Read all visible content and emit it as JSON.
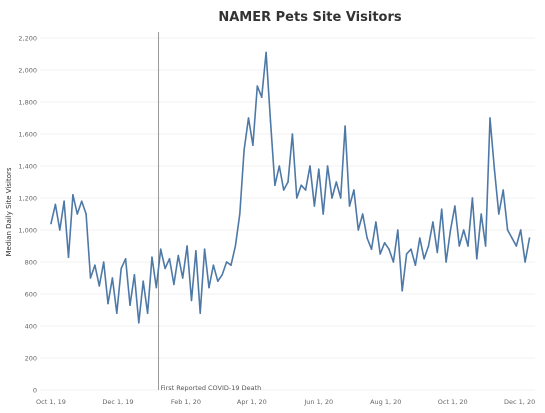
{
  "chart_data": {
    "type": "line",
    "title": "NAMER Pets Site Visitors",
    "ylabel": "Median Daily Site Visitors",
    "xlabel": "",
    "ylim": [
      0,
      2200
    ],
    "xlim": [
      "2019-09-21",
      "2020-12-15"
    ],
    "grid": true,
    "x_ticks": [
      {
        "date": "2019-10-01",
        "label": "Oct 1, 19"
      },
      {
        "date": "2019-12-01",
        "label": "Dec 1, 19"
      },
      {
        "date": "2020-02-01",
        "label": "Feb 1, 20"
      },
      {
        "date": "2020-04-01",
        "label": "Apr 1, 20"
      },
      {
        "date": "2020-06-01",
        "label": "Jun 1, 20"
      },
      {
        "date": "2020-08-01",
        "label": "Aug 1, 20"
      },
      {
        "date": "2020-10-01",
        "label": "Oct 1, 20"
      },
      {
        "date": "2020-12-01",
        "label": "Dec 1, 20"
      }
    ],
    "y_ticks": [
      {
        "value": 0,
        "label": "0"
      },
      {
        "value": 200,
        "label": "200"
      },
      {
        "value": 400,
        "label": "400"
      },
      {
        "value": 600,
        "label": "600"
      },
      {
        "value": 800,
        "label": "800"
      },
      {
        "value": 1000,
        "label": "1,000"
      },
      {
        "value": 1200,
        "label": "1,200"
      },
      {
        "value": 1400,
        "label": "1,400"
      },
      {
        "value": 1600,
        "label": "1,600"
      },
      {
        "value": 1800,
        "label": "1,800"
      },
      {
        "value": 2000,
        "label": "2,000"
      },
      {
        "value": 2200,
        "label": "2,200"
      }
    ],
    "reference_line": {
      "date": "2020-01-07",
      "label": "First Reported COVID-19 Death"
    },
    "colors": {
      "line": "#4e79a7",
      "reference": "#999999"
    },
    "series": [
      {
        "x": [
          "2019-10-01",
          "2019-10-05",
          "2019-10-09",
          "2019-10-13",
          "2019-10-17",
          "2019-10-21",
          "2019-10-25",
          "2019-10-29",
          "2019-11-02",
          "2019-11-06",
          "2019-11-10",
          "2019-11-14",
          "2019-11-18",
          "2019-11-22",
          "2019-11-26",
          "2019-11-30",
          "2019-12-04",
          "2019-12-08",
          "2019-12-12",
          "2019-12-16",
          "2019-12-20",
          "2019-12-24",
          "2019-12-28",
          "2020-01-01",
          "2020-01-05",
          "2020-01-09",
          "2020-01-13",
          "2020-01-17",
          "2020-01-21",
          "2020-01-25",
          "2020-01-29",
          "2020-02-02",
          "2020-02-06",
          "2020-02-10",
          "2020-02-14",
          "2020-02-18",
          "2020-02-22",
          "2020-02-26",
          "2020-03-01",
          "2020-03-05",
          "2020-03-09",
          "2020-03-13",
          "2020-03-17",
          "2020-03-21",
          "2020-03-25",
          "2020-03-29",
          "2020-04-02",
          "2020-04-06",
          "2020-04-10",
          "2020-04-14",
          "2020-04-18",
          "2020-04-22",
          "2020-04-26",
          "2020-04-30",
          "2020-05-04",
          "2020-05-08",
          "2020-05-12",
          "2020-05-16",
          "2020-05-20",
          "2020-05-24",
          "2020-05-28",
          "2020-06-01",
          "2020-06-05",
          "2020-06-09",
          "2020-06-13",
          "2020-06-17",
          "2020-06-21",
          "2020-06-25",
          "2020-06-29",
          "2020-07-03",
          "2020-07-07",
          "2020-07-11",
          "2020-07-15",
          "2020-07-19",
          "2020-07-23",
          "2020-07-27",
          "2020-07-31",
          "2020-08-04",
          "2020-08-08",
          "2020-08-12",
          "2020-08-16",
          "2020-08-20",
          "2020-08-24",
          "2020-08-28",
          "2020-09-01",
          "2020-09-05",
          "2020-09-09",
          "2020-09-13",
          "2020-09-17",
          "2020-09-21",
          "2020-09-25",
          "2020-09-29",
          "2020-10-03",
          "2020-10-07",
          "2020-10-11",
          "2020-10-15",
          "2020-10-19",
          "2020-10-23",
          "2020-10-27",
          "2020-10-31",
          "2020-11-04",
          "2020-11-08",
          "2020-11-12",
          "2020-11-16",
          "2020-11-20",
          "2020-11-24",
          "2020-11-28",
          "2020-12-02",
          "2020-12-06",
          "2020-12-10"
        ],
        "values": [
          1040,
          1160,
          1000,
          1180,
          830,
          1220,
          1100,
          1180,
          1100,
          700,
          780,
          650,
          800,
          540,
          700,
          480,
          760,
          820,
          530,
          720,
          420,
          680,
          480,
          830,
          640,
          880,
          760,
          820,
          660,
          840,
          700,
          900,
          560,
          870,
          480,
          880,
          640,
          780,
          680,
          720,
          800,
          780,
          900,
          1100,
          1500,
          1700,
          1530,
          1900,
          1830,
          2110,
          1680,
          1280,
          1400,
          1250,
          1300,
          1600,
          1200,
          1280,
          1250,
          1400,
          1150,
          1380,
          1100,
          1400,
          1200,
          1300,
          1200,
          1650,
          1150,
          1250,
          1000,
          1100,
          950,
          880,
          1050,
          850,
          920,
          880,
          800,
          1000,
          620,
          850,
          880,
          780,
          950,
          820,
          900,
          1050,
          860,
          1130,
          800,
          1000,
          1150,
          900,
          1000,
          900,
          1200,
          820,
          1100,
          900,
          1700,
          1380,
          1100,
          1250,
          1000,
          950,
          900,
          1000,
          800,
          950
        ]
      }
    ]
  }
}
